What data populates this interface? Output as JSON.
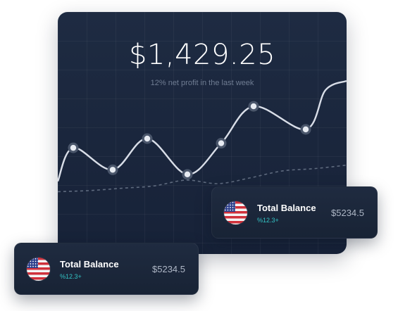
{
  "main_card": {
    "amount": "$1,429.25",
    "subtitle": "12% net profit in the last week"
  },
  "chart_data": {
    "type": "line",
    "series": [
      {
        "values": [
          0.13,
          0.42,
          0.23,
          0.5,
          0.19,
          0.46,
          0.78,
          0.58,
          0.92,
          1.0
        ]
      },
      {
        "values": [
          0.04,
          0.05,
          0.07,
          0.09,
          0.14,
          0.11,
          0.16,
          0.22,
          0.24,
          0.27
        ],
        "style": "dashed"
      }
    ],
    "markers_on_series": 0,
    "ylim": [
      0,
      1
    ],
    "grid": true,
    "colors": {
      "main_line": "#d9dee8",
      "dashed_line": "#5e6a7e",
      "marker": "#e7ebf2"
    }
  },
  "balance_cards": [
    {
      "title": "Total Balance",
      "change": "%12.3+",
      "value": "$5234.5",
      "flag": "us-flag-icon"
    },
    {
      "title": "Total Balance",
      "change": "%12.3+",
      "value": "$5234.5",
      "flag": "us-flag-icon"
    }
  ],
  "colors": {
    "card_bg": "#1b273c",
    "accent": "#33c4c6",
    "text_primary": "#ffffff",
    "text_muted": "#6f7c92"
  }
}
